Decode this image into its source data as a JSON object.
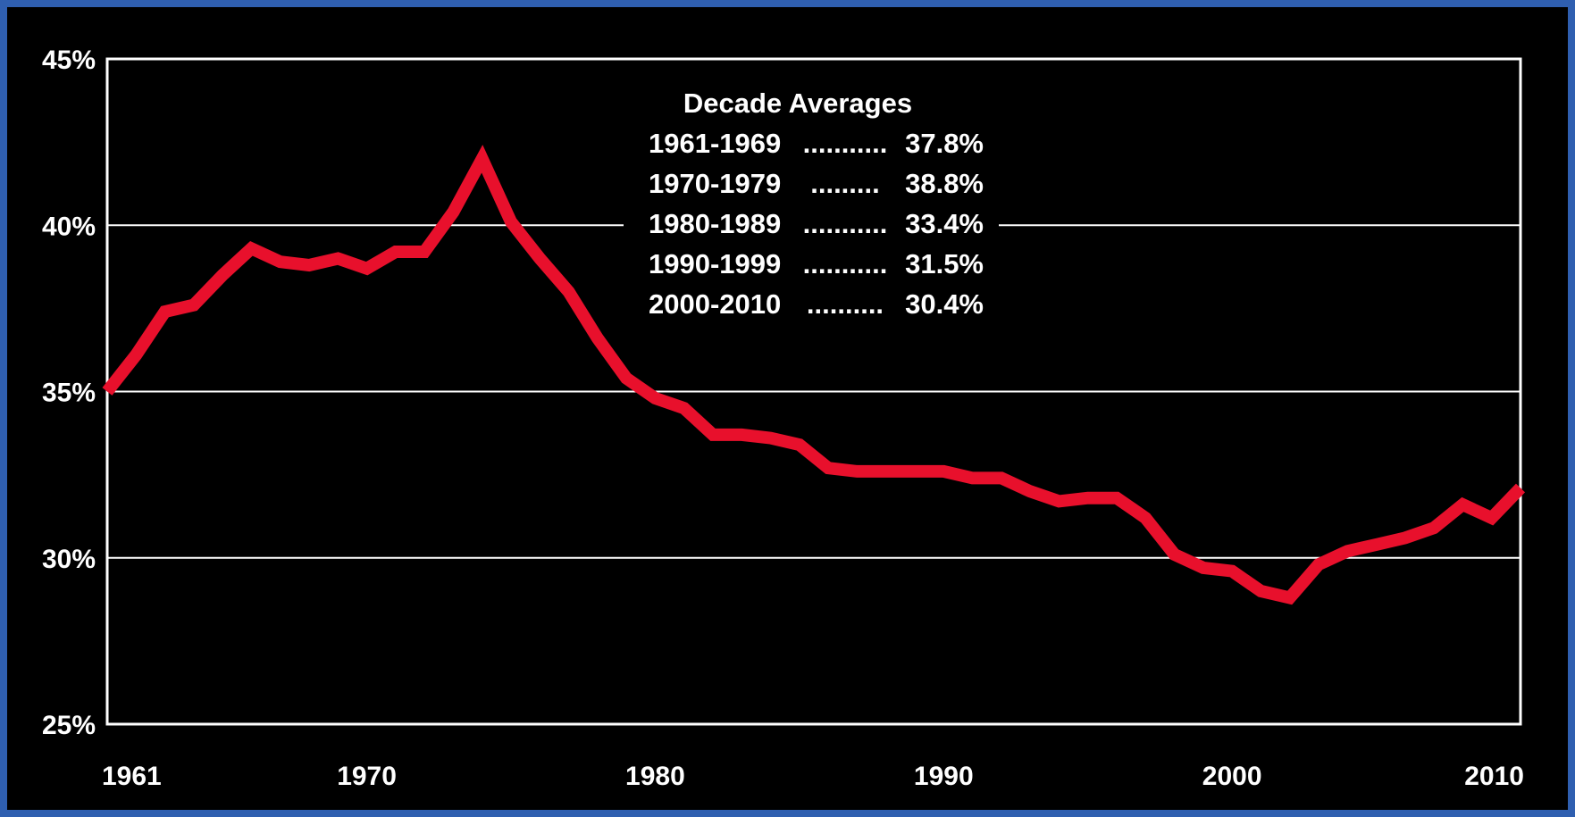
{
  "colors": {
    "border": "#2f5fb0",
    "background": "#000000",
    "line": "#e8102c",
    "grid": "#ffffff",
    "text": "#ffffff"
  },
  "chart_data": {
    "type": "line",
    "title": "",
    "xlabel": "",
    "ylabel": "",
    "xlim": [
      1961,
      2010
    ],
    "ylim": [
      25,
      45
    ],
    "grid": true,
    "x_ticks": [
      {
        "value": 1961,
        "label": "1961"
      },
      {
        "value": 1970,
        "label": "1970"
      },
      {
        "value": 1980,
        "label": "1980"
      },
      {
        "value": 1990,
        "label": "1990"
      },
      {
        "value": 2000,
        "label": "2000"
      },
      {
        "value": 2010,
        "label": "2010"
      }
    ],
    "y_ticks": [
      {
        "value": 45,
        "label": "45%"
      },
      {
        "value": 40,
        "label": "40%"
      },
      {
        "value": 35,
        "label": "35%"
      },
      {
        "value": 30,
        "label": "30%"
      },
      {
        "value": 25,
        "label": "25%"
      }
    ],
    "x": [
      1961,
      1962,
      1963,
      1964,
      1965,
      1966,
      1967,
      1968,
      1969,
      1970,
      1971,
      1972,
      1973,
      1974,
      1975,
      1976,
      1977,
      1978,
      1979,
      1980,
      1981,
      1982,
      1983,
      1984,
      1985,
      1986,
      1987,
      1988,
      1989,
      1990,
      1991,
      1992,
      1993,
      1994,
      1995,
      1996,
      1997,
      1998,
      1999,
      2000,
      2001,
      2002,
      2003,
      2004,
      2005,
      2006,
      2007,
      2008,
      2009,
      2010
    ],
    "series": [
      {
        "values": [
          35.0,
          36.1,
          37.4,
          37.6,
          38.5,
          39.3,
          38.9,
          38.8,
          39.0,
          38.7,
          39.2,
          39.2,
          40.4,
          42.0,
          40.1,
          39.0,
          38.0,
          36.6,
          35.4,
          34.8,
          34.5,
          33.7,
          33.7,
          33.6,
          33.4,
          32.7,
          32.6,
          32.6,
          32.6,
          32.6,
          32.4,
          32.4,
          32.0,
          31.7,
          31.8,
          31.8,
          31.2,
          30.1,
          29.7,
          29.6,
          29.0,
          28.8,
          29.8,
          30.2,
          30.4,
          30.6,
          30.9,
          31.6,
          31.2,
          32.1
        ]
      }
    ],
    "annotation": {
      "title": "Decade Averages",
      "rows": [
        {
          "range": "1961-1969",
          "dots": "...........",
          "value": "37.8%"
        },
        {
          "range": "1970-1979",
          "dots": ".........",
          "value": "38.8%"
        },
        {
          "range": "1980-1989",
          "dots": "...........",
          "value": "33.4%"
        },
        {
          "range": "1990-1999",
          "dots": "...........",
          "value": "31.5%"
        },
        {
          "range": "2000-2010",
          "dots": "..........",
          "value": "30.4%"
        }
      ],
      "position": "top-center"
    }
  }
}
